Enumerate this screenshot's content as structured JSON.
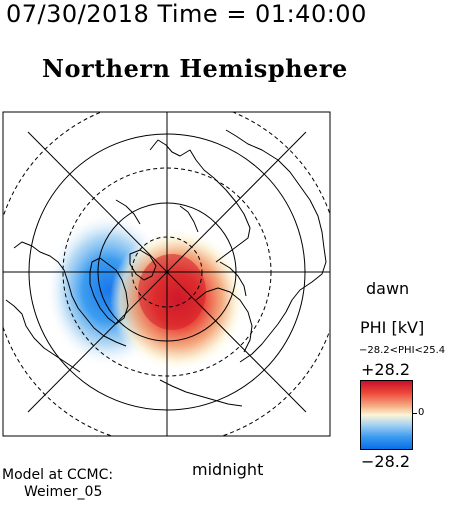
{
  "header": {
    "datetime": "07/30/2018 Time = 01:40:00",
    "title": "Northern Hemisphere"
  },
  "map": {
    "orientation_labels": {
      "right": "dawn",
      "bottom": "midnight"
    },
    "pattern": "two-cell ionospheric electric potential, positive cell dusk-to-midnight (red), negative cell on dawn-opposite side (blue)"
  },
  "colorbar": {
    "title": "PHI [kV]",
    "range_text": "−28.2<PHI<25.4",
    "max_label": "+28.2",
    "min_label": "−28.2",
    "zero_label": "0",
    "colors": {
      "max": "#c8102a",
      "mid": "#fbf6d8",
      "min": "#0a6ee6"
    }
  },
  "footer": {
    "model_line1": "Model at CCMC:",
    "model_line2": "Weimer_05"
  }
}
